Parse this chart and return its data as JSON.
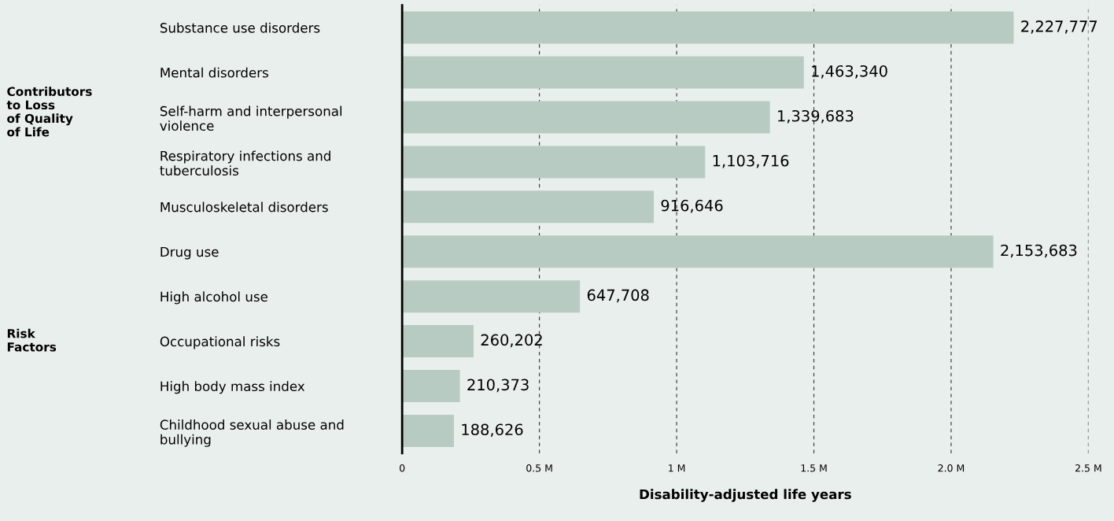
{
  "chart_data": {
    "type": "bar",
    "orientation": "horizontal",
    "xlabel": "Disability-adjusted life years",
    "categories": [
      "Substance use disorders",
      "Mental disorders",
      "Self-harm and interpersonal\nviolence",
      "Respiratory infections and\ntuberculosis",
      "Musculoskeletal disorders",
      "Drug use",
      "High alcohol use",
      "Occupational risks",
      "High body mass index",
      "Childhood sexual abuse and\nbullying"
    ],
    "values": [
      2227777,
      1463340,
      1339683,
      1103716,
      916646,
      2153683,
      647708,
      260202,
      210373,
      188626
    ],
    "value_labels": [
      "2,227,777",
      "1,463,340",
      "1,339,683",
      "1,103,716",
      "916,646",
      "2,153,683",
      "647,708",
      "260,202",
      "210,373",
      "188,626"
    ],
    "color": "#b8cbc3",
    "xlim": [
      0,
      2500000
    ],
    "xticks": [
      0,
      {
        "value": 500000,
        "label": "0.5 M"
      },
      {
        "value": 1000000,
        "label": "1 M"
      },
      {
        "value": 1500000,
        "label": "1.5 M"
      },
      {
        "value": 2000000,
        "label": "2.0 M"
      },
      {
        "value": 2500000,
        "label": "2.5 M"
      }
    ],
    "grid": "x",
    "annotations": [
      "Contributors\nto Loss\nof Quality\nof Life",
      "Risk\nFactors"
    ]
  }
}
